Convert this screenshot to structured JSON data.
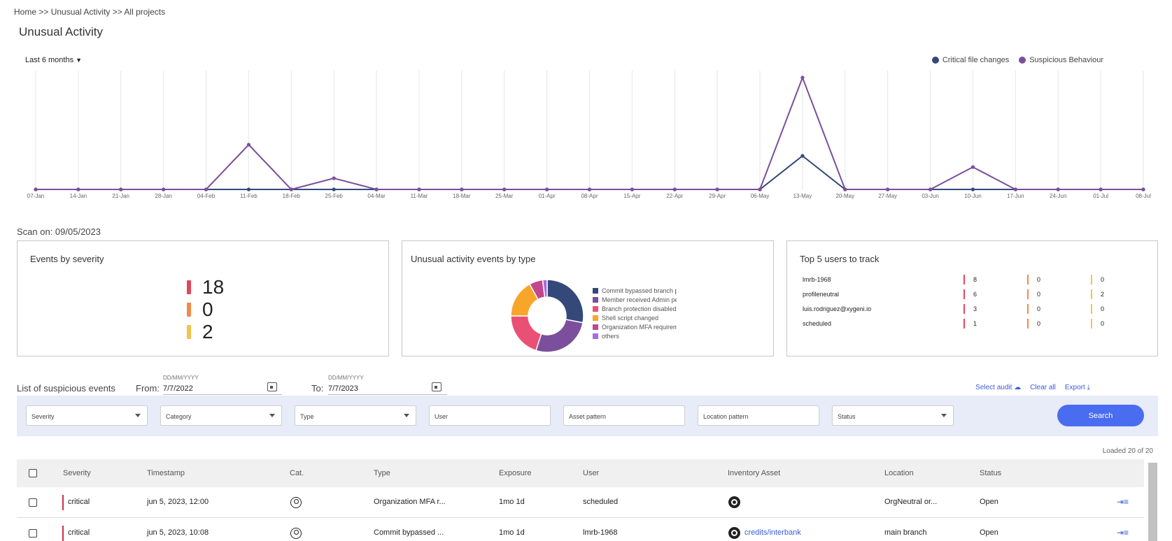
{
  "breadcrumb": "Home >> Unusual Activity >> All projects",
  "page_title": "Unusual Activity",
  "range_select": {
    "value": "Last 6 months"
  },
  "legend": [
    {
      "label": "Critical file changes",
      "color": "#34497a"
    },
    {
      "label": "Suspicious Behaviour",
      "color": "#7b4f9b"
    }
  ],
  "chart_data": {
    "type": "line",
    "title": "",
    "xlabel": "",
    "ylabel": "",
    "x": [
      "07-Jan",
      "14-Jan",
      "21-Jan",
      "28-Jan",
      "04-Feb",
      "11-Feb",
      "18-Feb",
      "25-Feb",
      "04-Mar",
      "11-Mar",
      "18-Mar",
      "25-Mar",
      "01-Apr",
      "08-Apr",
      "15-Apr",
      "22-Apr",
      "29-Apr",
      "06-May",
      "13-May",
      "20-May",
      "27-May",
      "03-Jun",
      "10-Jun",
      "17-Jun",
      "24-Jun",
      "01-Jul",
      "08-Jul"
    ],
    "series": [
      {
        "name": "Critical file changes",
        "color": "#34497a",
        "values": [
          0,
          0,
          0,
          0,
          0,
          0,
          0,
          0,
          0,
          0,
          0,
          0,
          0,
          0,
          0,
          0,
          0,
          0,
          3,
          0,
          0,
          0,
          0,
          0,
          0,
          0,
          0
        ]
      },
      {
        "name": "Suspicious Behaviour",
        "color": "#7b4f9b",
        "values": [
          0,
          0,
          0,
          0,
          0,
          4,
          0,
          1,
          0,
          0,
          0,
          0,
          0,
          0,
          0,
          0,
          0,
          0,
          10,
          0,
          0,
          0,
          2,
          0,
          0,
          0,
          0
        ]
      }
    ],
    "ylim": [
      0,
      10
    ],
    "grid": "vertical",
    "legend_position": "top-right"
  },
  "scan_on": "Scan on: 09/05/2023",
  "severity_card": {
    "title": "Events by severity",
    "items": [
      {
        "value": "18",
        "color": "#e0475b"
      },
      {
        "value": "0",
        "color": "#f08a4b"
      },
      {
        "value": "2",
        "color": "#f3c24f"
      }
    ]
  },
  "type_card": {
    "title": "Unusual activity events by type",
    "slices": [
      {
        "label": "Commit bypassed branch p",
        "color": "#34497a",
        "value": 28
      },
      {
        "label": "Member received Admin pe",
        "color": "#7b4f9b",
        "value": 27
      },
      {
        "label": "Branch protection disabled",
        "color": "#ea4f74",
        "value": 20
      },
      {
        "label": "Shell script changed",
        "color": "#f8a62a",
        "value": 17
      },
      {
        "label": "Organization MFA requirem",
        "color": "#c3478f",
        "value": 6
      },
      {
        "label": "others",
        "color": "#a66be0",
        "value": 2
      }
    ]
  },
  "users_card": {
    "title": "Top 5 users to track",
    "colors": [
      "#e0475b",
      "#f08a4b",
      "#f3c24f"
    ],
    "rows": [
      {
        "user": "lmrb-1968",
        "c1": "8",
        "c2": "0",
        "c3": "0"
      },
      {
        "user": "profileneutral",
        "c1": "6",
        "c2": "0",
        "c3": "2"
      },
      {
        "user": "luis.rodriguez@xygeni.io",
        "c1": "3",
        "c2": "0",
        "c3": "0"
      },
      {
        "user": "scheduled",
        "c1": "1",
        "c2": "0",
        "c3": "0"
      }
    ]
  },
  "list": {
    "title": "List of suspicious events",
    "from_label": "From:",
    "to_label": "To:",
    "date_placeholder": "DD/MM/YYYY",
    "from_value": "7/7/2022",
    "to_value": "7/7/2023",
    "actions": {
      "select_audit": "Select audit",
      "clear_all": "Clear all",
      "export": "Export"
    }
  },
  "filters": {
    "severity": "Severity",
    "category": "Category",
    "type": "Type",
    "user": "User",
    "asset_pattern": "Asset pattern",
    "location_pattern": "Location pattern",
    "status": "Status",
    "search": "Search"
  },
  "loaded": "Loaded 20 of 20",
  "table": {
    "headers": [
      "Severity",
      "Timestamp",
      "Cat.",
      "Type",
      "Exposure",
      "User",
      "Inventory Asset",
      "Location",
      "Status"
    ],
    "rows": [
      {
        "severity": "critical",
        "timestamp": "jun 5, 2023, 12:00",
        "type": "Organization MFA r...",
        "exposure": "1mo 1d",
        "user": "scheduled",
        "asset": "",
        "location": "OrgNeutral or...",
        "status": "Open"
      },
      {
        "severity": "critical",
        "timestamp": "jun 5, 2023, 10:08",
        "type": "Commit bypassed ...",
        "exposure": "1mo 1d",
        "user": "lmrb-1968",
        "asset": "credits/interbank",
        "location": "main branch",
        "status": "Open"
      }
    ]
  }
}
